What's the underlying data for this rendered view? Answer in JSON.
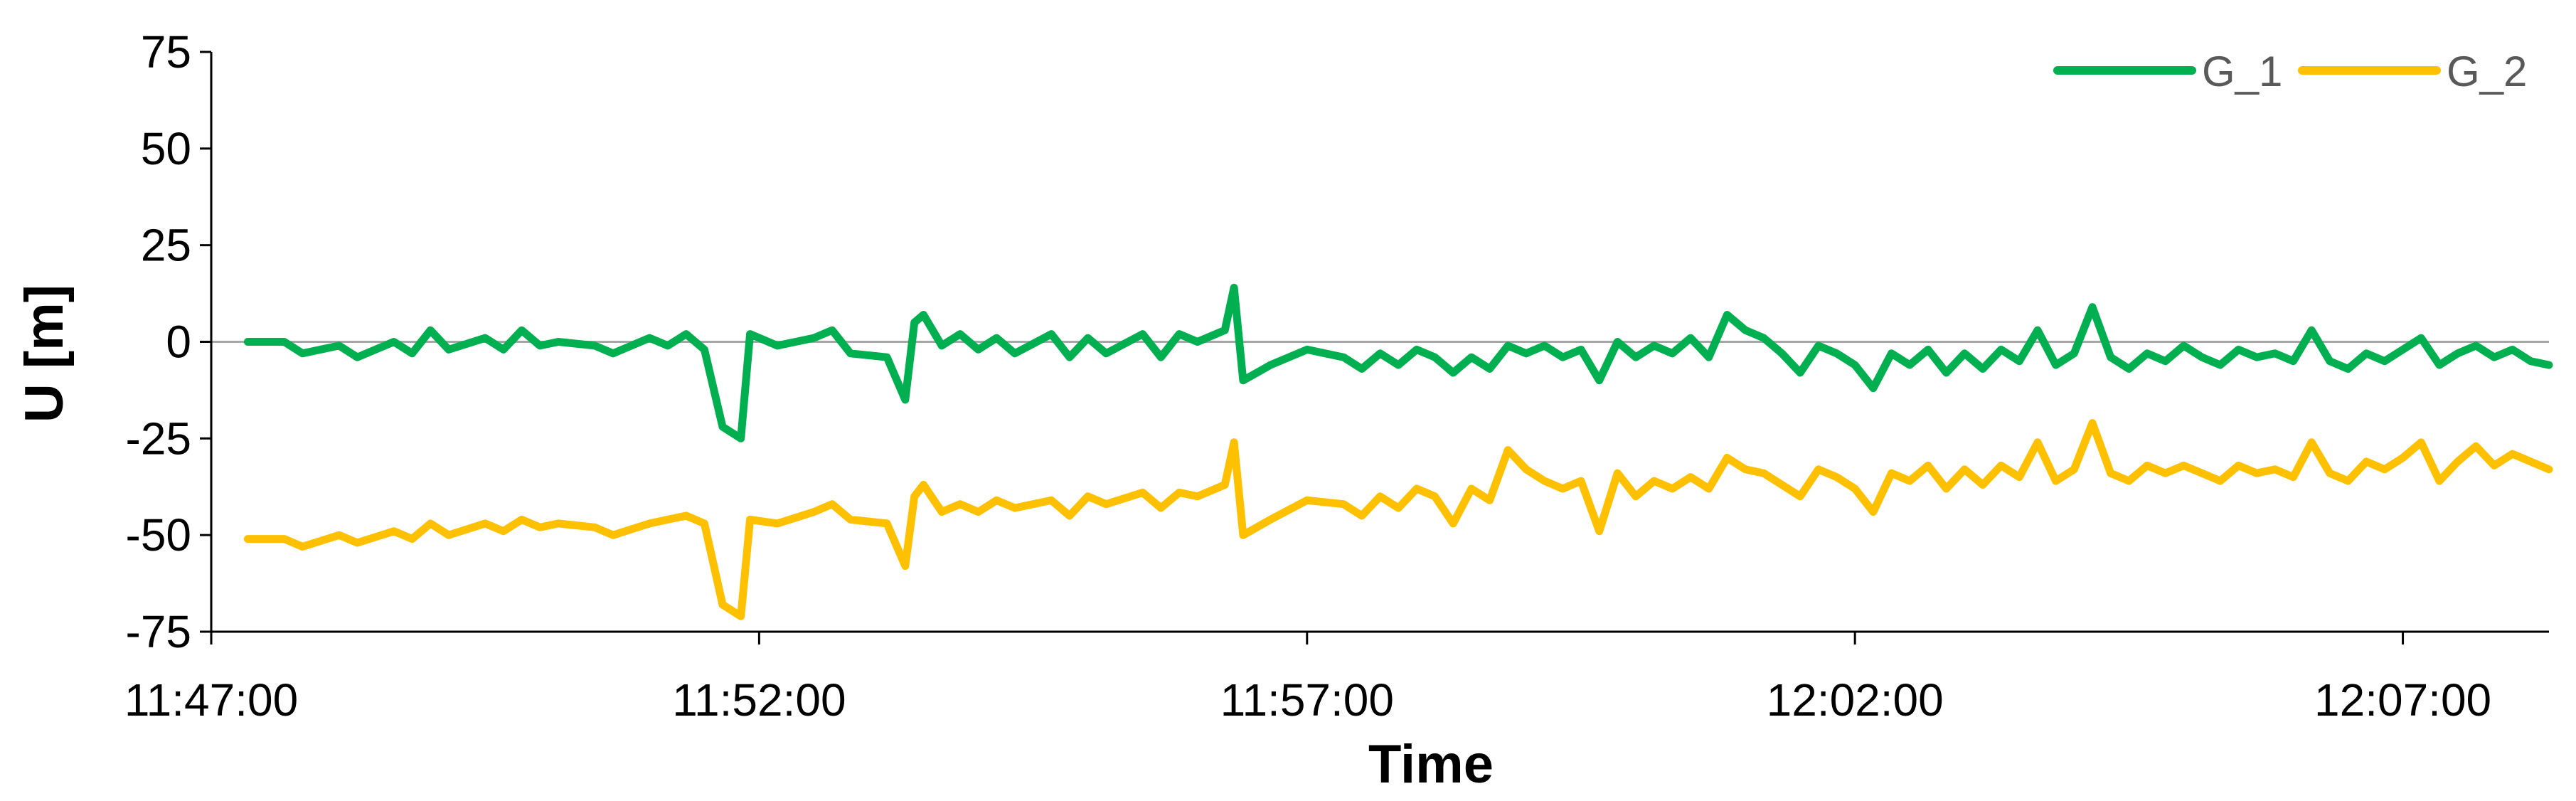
{
  "chart_data": {
    "type": "line",
    "title": "",
    "xlabel": "Time",
    "ylabel": "U [m]",
    "ylim": [
      -75,
      75
    ],
    "yticks": [
      75,
      50,
      25,
      0,
      -25,
      -50,
      -75
    ],
    "xlim": [
      "11:47:00",
      "12:08:20"
    ],
    "xticks": [
      "11:47:00",
      "11:52:00",
      "11:57:00",
      "12:02:00",
      "12:07:00"
    ],
    "zero_line": true,
    "grid": false,
    "legend_position": "top-right",
    "series": [
      {
        "name": "G_1",
        "color": "#00b050",
        "points": [
          [
            "11:47:20",
            0
          ],
          [
            "11:47:40",
            0
          ],
          [
            "11:47:50",
            -3
          ],
          [
            "11:48:10",
            -1
          ],
          [
            "11:48:20",
            -4
          ],
          [
            "11:48:40",
            0
          ],
          [
            "11:48:50",
            -3
          ],
          [
            "11:49:00",
            3
          ],
          [
            "11:49:10",
            -2
          ],
          [
            "11:49:30",
            1
          ],
          [
            "11:49:40",
            -2
          ],
          [
            "11:49:50",
            3
          ],
          [
            "11:50:00",
            -1
          ],
          [
            "11:50:10",
            0
          ],
          [
            "11:50:30",
            -1
          ],
          [
            "11:50:40",
            -3
          ],
          [
            "11:51:00",
            1
          ],
          [
            "11:51:10",
            -1
          ],
          [
            "11:51:20",
            2
          ],
          [
            "11:51:30",
            -2
          ],
          [
            "11:51:40",
            -22
          ],
          [
            "11:51:50",
            -25
          ],
          [
            "11:51:55",
            2
          ],
          [
            "11:52:10",
            -1
          ],
          [
            "11:52:30",
            1
          ],
          [
            "11:52:40",
            3
          ],
          [
            "11:52:50",
            -3
          ],
          [
            "11:53:10",
            -4
          ],
          [
            "11:53:20",
            -15
          ],
          [
            "11:53:25",
            5
          ],
          [
            "11:53:30",
            7
          ],
          [
            "11:53:40",
            -1
          ],
          [
            "11:53:50",
            2
          ],
          [
            "11:54:00",
            -2
          ],
          [
            "11:54:10",
            1
          ],
          [
            "11:54:20",
            -3
          ],
          [
            "11:54:40",
            2
          ],
          [
            "11:54:50",
            -4
          ],
          [
            "11:55:00",
            1
          ],
          [
            "11:55:10",
            -3
          ],
          [
            "11:55:30",
            2
          ],
          [
            "11:55:40",
            -4
          ],
          [
            "11:55:50",
            2
          ],
          [
            "11:56:00",
            0
          ],
          [
            "11:56:15",
            3
          ],
          [
            "11:56:20",
            14
          ],
          [
            "11:56:25",
            -10
          ],
          [
            "11:56:40",
            -6
          ],
          [
            "11:57:00",
            -2
          ],
          [
            "11:57:20",
            -4
          ],
          [
            "11:57:30",
            -7
          ],
          [
            "11:57:40",
            -3
          ],
          [
            "11:57:50",
            -6
          ],
          [
            "11:58:00",
            -2
          ],
          [
            "11:58:10",
            -4
          ],
          [
            "11:58:20",
            -8
          ],
          [
            "11:58:30",
            -4
          ],
          [
            "11:58:40",
            -7
          ],
          [
            "11:58:50",
            -1
          ],
          [
            "11:59:00",
            -3
          ],
          [
            "11:59:10",
            -1
          ],
          [
            "11:59:20",
            -4
          ],
          [
            "11:59:30",
            -2
          ],
          [
            "11:59:40",
            -10
          ],
          [
            "11:59:50",
            0
          ],
          [
            "12:00:00",
            -4
          ],
          [
            "12:00:10",
            -1
          ],
          [
            "12:00:20",
            -3
          ],
          [
            "12:00:30",
            1
          ],
          [
            "12:00:40",
            -4
          ],
          [
            "12:00:50",
            7
          ],
          [
            "12:01:00",
            3
          ],
          [
            "12:01:10",
            1
          ],
          [
            "12:01:20",
            -3
          ],
          [
            "12:01:30",
            -8
          ],
          [
            "12:01:40",
            -1
          ],
          [
            "12:01:50",
            -3
          ],
          [
            "12:02:00",
            -6
          ],
          [
            "12:02:10",
            -12
          ],
          [
            "12:02:20",
            -3
          ],
          [
            "12:02:30",
            -6
          ],
          [
            "12:02:40",
            -2
          ],
          [
            "12:02:50",
            -8
          ],
          [
            "12:03:00",
            -3
          ],
          [
            "12:03:10",
            -7
          ],
          [
            "12:03:20",
            -2
          ],
          [
            "12:03:30",
            -5
          ],
          [
            "12:03:40",
            3
          ],
          [
            "12:03:50",
            -6
          ],
          [
            "12:04:00",
            -3
          ],
          [
            "12:04:10",
            9
          ],
          [
            "12:04:20",
            -4
          ],
          [
            "12:04:30",
            -7
          ],
          [
            "12:04:40",
            -3
          ],
          [
            "12:04:50",
            -5
          ],
          [
            "12:05:00",
            -1
          ],
          [
            "12:05:10",
            -4
          ],
          [
            "12:05:20",
            -6
          ],
          [
            "12:05:30",
            -2
          ],
          [
            "12:05:40",
            -4
          ],
          [
            "12:05:50",
            -3
          ],
          [
            "12:06:00",
            -5
          ],
          [
            "12:06:10",
            3
          ],
          [
            "12:06:20",
            -5
          ],
          [
            "12:06:30",
            -7
          ],
          [
            "12:06:40",
            -3
          ],
          [
            "12:06:50",
            -5
          ],
          [
            "12:07:00",
            -2
          ],
          [
            "12:07:10",
            1
          ],
          [
            "12:07:20",
            -6
          ],
          [
            "12:07:30",
            -3
          ],
          [
            "12:07:40",
            -1
          ],
          [
            "12:07:50",
            -4
          ],
          [
            "12:08:00",
            -2
          ],
          [
            "12:08:10",
            -5
          ],
          [
            "12:08:20",
            -6
          ]
        ]
      },
      {
        "name": "G_2",
        "color": "#ffc000",
        "points": [
          [
            "11:47:20",
            -51
          ],
          [
            "11:47:40",
            -51
          ],
          [
            "11:47:50",
            -53
          ],
          [
            "11:48:10",
            -50
          ],
          [
            "11:48:20",
            -52
          ],
          [
            "11:48:40",
            -49
          ],
          [
            "11:48:50",
            -51
          ],
          [
            "11:49:00",
            -47
          ],
          [
            "11:49:10",
            -50
          ],
          [
            "11:49:30",
            -47
          ],
          [
            "11:49:40",
            -49
          ],
          [
            "11:49:50",
            -46
          ],
          [
            "11:50:00",
            -48
          ],
          [
            "11:50:10",
            -47
          ],
          [
            "11:50:30",
            -48
          ],
          [
            "11:50:40",
            -50
          ],
          [
            "11:51:00",
            -47
          ],
          [
            "11:51:10",
            -46
          ],
          [
            "11:51:20",
            -45
          ],
          [
            "11:51:30",
            -47
          ],
          [
            "11:51:40",
            -68
          ],
          [
            "11:51:50",
            -71
          ],
          [
            "11:51:55",
            -46
          ],
          [
            "11:52:10",
            -47
          ],
          [
            "11:52:30",
            -44
          ],
          [
            "11:52:40",
            -42
          ],
          [
            "11:52:50",
            -46
          ],
          [
            "11:53:10",
            -47
          ],
          [
            "11:53:20",
            -58
          ],
          [
            "11:53:25",
            -40
          ],
          [
            "11:53:30",
            -37
          ],
          [
            "11:53:40",
            -44
          ],
          [
            "11:53:50",
            -42
          ],
          [
            "11:54:00",
            -44
          ],
          [
            "11:54:10",
            -41
          ],
          [
            "11:54:20",
            -43
          ],
          [
            "11:54:40",
            -41
          ],
          [
            "11:54:50",
            -45
          ],
          [
            "11:55:00",
            -40
          ],
          [
            "11:55:10",
            -42
          ],
          [
            "11:55:30",
            -39
          ],
          [
            "11:55:40",
            -43
          ],
          [
            "11:55:50",
            -39
          ],
          [
            "11:56:00",
            -40
          ],
          [
            "11:56:15",
            -37
          ],
          [
            "11:56:20",
            -26
          ],
          [
            "11:56:25",
            -50
          ],
          [
            "11:56:40",
            -46
          ],
          [
            "11:57:00",
            -41
          ],
          [
            "11:57:20",
            -42
          ],
          [
            "11:57:30",
            -45
          ],
          [
            "11:57:40",
            -40
          ],
          [
            "11:57:50",
            -43
          ],
          [
            "11:58:00",
            -38
          ],
          [
            "11:58:10",
            -40
          ],
          [
            "11:58:20",
            -47
          ],
          [
            "11:58:30",
            -38
          ],
          [
            "11:58:40",
            -41
          ],
          [
            "11:58:50",
            -28
          ],
          [
            "11:59:00",
            -33
          ],
          [
            "11:59:10",
            -36
          ],
          [
            "11:59:20",
            -38
          ],
          [
            "11:59:30",
            -36
          ],
          [
            "11:59:40",
            -49
          ],
          [
            "11:59:50",
            -34
          ],
          [
            "12:00:00",
            -40
          ],
          [
            "12:00:10",
            -36
          ],
          [
            "12:00:20",
            -38
          ],
          [
            "12:00:30",
            -35
          ],
          [
            "12:00:40",
            -38
          ],
          [
            "12:00:50",
            -30
          ],
          [
            "12:01:00",
            -33
          ],
          [
            "12:01:10",
            -34
          ],
          [
            "12:01:20",
            -37
          ],
          [
            "12:01:30",
            -40
          ],
          [
            "12:01:40",
            -33
          ],
          [
            "12:01:50",
            -35
          ],
          [
            "12:02:00",
            -38
          ],
          [
            "12:02:10",
            -44
          ],
          [
            "12:02:20",
            -34
          ],
          [
            "12:02:30",
            -36
          ],
          [
            "12:02:40",
            -32
          ],
          [
            "12:02:50",
            -38
          ],
          [
            "12:03:00",
            -33
          ],
          [
            "12:03:10",
            -37
          ],
          [
            "12:03:20",
            -32
          ],
          [
            "12:03:30",
            -35
          ],
          [
            "12:03:40",
            -26
          ],
          [
            "12:03:50",
            -36
          ],
          [
            "12:04:00",
            -33
          ],
          [
            "12:04:10",
            -21
          ],
          [
            "12:04:20",
            -34
          ],
          [
            "12:04:30",
            -36
          ],
          [
            "12:04:40",
            -32
          ],
          [
            "12:04:50",
            -34
          ],
          [
            "12:05:00",
            -32
          ],
          [
            "12:05:10",
            -34
          ],
          [
            "12:05:20",
            -36
          ],
          [
            "12:05:30",
            -32
          ],
          [
            "12:05:40",
            -34
          ],
          [
            "12:05:50",
            -33
          ],
          [
            "12:06:00",
            -35
          ],
          [
            "12:06:10",
            -26
          ],
          [
            "12:06:20",
            -34
          ],
          [
            "12:06:30",
            -36
          ],
          [
            "12:06:40",
            -31
          ],
          [
            "12:06:50",
            -33
          ],
          [
            "12:07:00",
            -30
          ],
          [
            "12:07:10",
            -26
          ],
          [
            "12:07:20",
            -36
          ],
          [
            "12:07:30",
            -31
          ],
          [
            "12:07:40",
            -27
          ],
          [
            "12:07:50",
            -32
          ],
          [
            "12:08:00",
            -29
          ],
          [
            "12:08:10",
            -31
          ],
          [
            "12:08:20",
            -33
          ]
        ]
      }
    ]
  }
}
